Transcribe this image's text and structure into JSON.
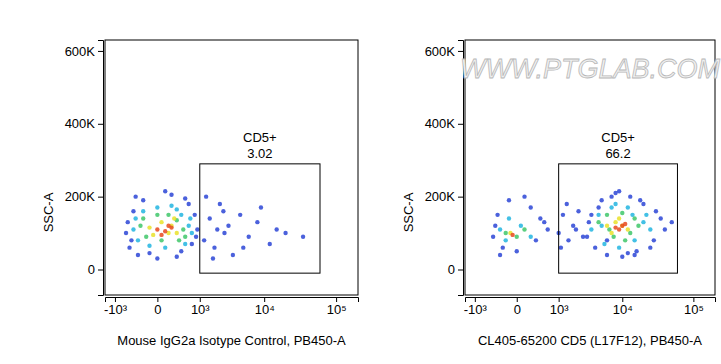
{
  "chart_data": [
    {
      "type": "scatter",
      "log": "x",
      "marker": "circle",
      "x_label": "Mouse IgG2a Isotype Control, PB450-A",
      "y_label": "SSC-A",
      "xlim": [
        -1500,
        200000
      ],
      "ylim": [
        -70000,
        630000
      ],
      "xticks": [
        {
          "value": -1000,
          "label": "-10³"
        },
        0,
        {
          "value": 1000,
          "label": "10³"
        },
        {
          "value": 10000,
          "label": "10⁴"
        },
        {
          "value": 100000,
          "label": "10⁵"
        }
      ],
      "yticks": [
        0,
        {
          "value": 200000,
          "label": "200K"
        },
        {
          "value": 400000,
          "label": "400K"
        },
        {
          "value": 600000,
          "label": "600K"
        }
      ],
      "gate": {
        "x": [
          1000,
          60000
        ],
        "y": [
          -10000,
          290000
        ],
        "label": "CD5+",
        "value": 3.02
      },
      "series": [
        {
          "color": "#2b45d6",
          "x": [
            -600,
            -500,
            -400,
            -300,
            -200,
            0,
            200,
            400,
            600,
            800,
            900,
            -550,
            -450,
            700,
            850,
            -350,
            300,
            100,
            -100,
            500,
            1200,
            1500,
            1800,
            2200,
            2600,
            3000,
            3500,
            4500,
            6000,
            8000,
            12000,
            20000,
            35000,
            1300,
            1700,
            2000,
            2500,
            5000,
            9000,
            15000
          ],
          "values": [
            100000,
            60000,
            160000,
            40000,
            190000,
            30000,
            205000,
            50000,
            180000,
            150000,
            110000,
            130000,
            80000,
            70000,
            90000,
            200000,
            35000,
            215000,
            45000,
            195000,
            80000,
            140000,
            60000,
            180000,
            100000,
            120000,
            40000,
            150000,
            90000,
            130000,
            70000,
            100000,
            90000,
            200000,
            30000,
            110000,
            160000,
            60000,
            170000,
            110000
          ]
        },
        {
          "color": "#22b5e0",
          "x": [
            -400,
            -300,
            -200,
            0,
            200,
            400,
            600,
            700,
            -350,
            500,
            100,
            -100,
            300,
            650
          ],
          "values": [
            110000,
            80000,
            160000,
            170000,
            175000,
            150000,
            120000,
            100000,
            140000,
            70000,
            60000,
            65000,
            165000,
            140000
          ]
        },
        {
          "color": "#3fc76a",
          "x": [
            -250,
            -150,
            0,
            150,
            300,
            450,
            500,
            -200,
            350,
            50
          ],
          "values": [
            120000,
            90000,
            150000,
            150000,
            135000,
            110000,
            90000,
            140000,
            80000,
            80000
          ]
        },
        {
          "color": "#e9e22a",
          "x": [
            -100,
            50,
            200,
            300,
            -50,
            150,
            250
          ],
          "values": [
            115000,
            130000,
            120000,
            100000,
            95000,
            100000,
            140000
          ]
        },
        {
          "color": "#e8491d",
          "x": [
            0,
            100,
            150,
            50,
            200
          ],
          "values": [
            110000,
            105000,
            120000,
            95000,
            115000
          ]
        }
      ]
    },
    {
      "type": "scatter",
      "log": "x",
      "marker": "circle",
      "x_label": "CL405-65200 CD5 (L17F12), PB450-A",
      "y_label": "SSC-A",
      "watermark": "WWW.PTGLAB.COM",
      "xlim": [
        -1500,
        200000
      ],
      "ylim": [
        -70000,
        630000
      ],
      "xticks": [
        {
          "value": -1000,
          "label": "-10³"
        },
        0,
        {
          "value": 1000,
          "label": "10³"
        },
        {
          "value": 10000,
          "label": "10⁴"
        },
        {
          "value": 100000,
          "label": "10⁵"
        }
      ],
      "yticks": [
        0,
        {
          "value": 200000,
          "label": "200K"
        },
        {
          "value": 400000,
          "label": "400K"
        },
        {
          "value": 600000,
          "label": "600K"
        }
      ],
      "gate": {
        "x": [
          1000,
          60000
        ],
        "y": [
          -10000,
          290000
        ],
        "label": "CD5+",
        "value": 66.2
      },
      "series": [
        {
          "color": "#2b45d6",
          "x": [
            -400,
            -300,
            -200,
            -100,
            0,
            200,
            400,
            600,
            -350,
            300,
            100,
            -250,
            500,
            1000,
            1200,
            1500,
            1800,
            2200,
            2600,
            1100,
            1400,
            2000,
            3000,
            3500,
            4000,
            5000,
            6000,
            8000,
            10000,
            13000,
            16000,
            20000,
            25000,
            30000,
            40000,
            50000,
            3200,
            4500,
            7000,
            12000,
            18000,
            28000,
            35000,
            6000,
            9000,
            15000
          ],
          "values": [
            90000,
            150000,
            60000,
            190000,
            50000,
            170000,
            140000,
            110000,
            120000,
            80000,
            200000,
            40000,
            130000,
            100000,
            150000,
            80000,
            120000,
            160000,
            90000,
            60000,
            180000,
            110000,
            90000,
            150000,
            60000,
            190000,
            40000,
            210000,
            35000,
            200000,
            50000,
            180000,
            60000,
            160000,
            110000,
            130000,
            130000,
            170000,
            200000,
            45000,
            190000,
            80000,
            140000,
            80000,
            215000,
            40000
          ]
        },
        {
          "color": "#22b5e0",
          "x": [
            -250,
            -100,
            50,
            200,
            -150,
            3500,
            4500,
            5500,
            7000,
            9000,
            12000,
            15000,
            20000,
            25000,
            5000,
            8000,
            14000,
            22000
          ],
          "values": [
            110000,
            140000,
            120000,
            90000,
            80000,
            110000,
            150000,
            70000,
            170000,
            60000,
            170000,
            80000,
            130000,
            110000,
            120000,
            180000,
            150000,
            150000
          ]
        },
        {
          "color": "#3fc76a",
          "x": [
            -150,
            0,
            100,
            4500,
            6000,
            7500,
            10000,
            13000,
            17000,
            6500,
            11000,
            15000
          ],
          "values": [
            100000,
            90000,
            110000,
            130000,
            150000,
            90000,
            155000,
            100000,
            120000,
            110000,
            80000,
            140000
          ]
        },
        {
          "color": "#e9e22a",
          "x": [
            -80,
            6000,
            8000,
            10000,
            12000,
            7000,
            9000
          ],
          "values": [
            100000,
            120000,
            130000,
            120000,
            110000,
            100000,
            140000
          ]
        },
        {
          "color": "#e8491d",
          "x": [
            -50,
            8000,
            9000,
            10000,
            11000
          ],
          "values": [
            95000,
            115000,
            110000,
            120000,
            125000
          ]
        }
      ]
    }
  ]
}
